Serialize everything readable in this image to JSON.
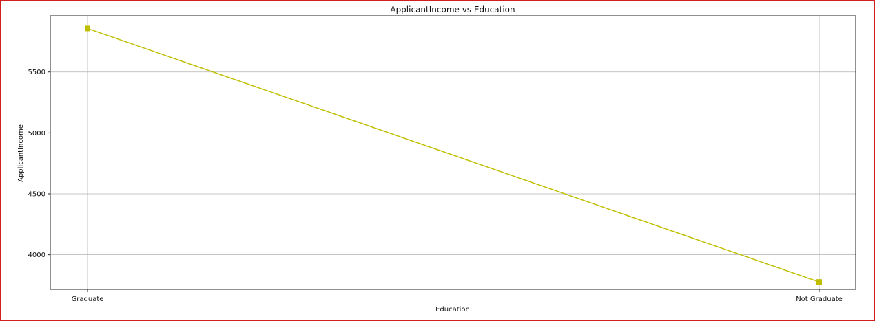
{
  "chart_data": {
    "type": "line",
    "title": "ApplicantIncome vs Education",
    "xlabel": "Education",
    "ylabel": "ApplicantIncome",
    "categories": [
      "Graduate",
      "Not Graduate"
    ],
    "series": [
      {
        "values": [
          5857,
          3777
        ],
        "color": "#bfbf00",
        "marker": "square"
      }
    ],
    "yticks": [
      4000,
      4500,
      5000,
      5500
    ],
    "ylim": [
      3716,
      5961
    ],
    "grid": true
  }
}
